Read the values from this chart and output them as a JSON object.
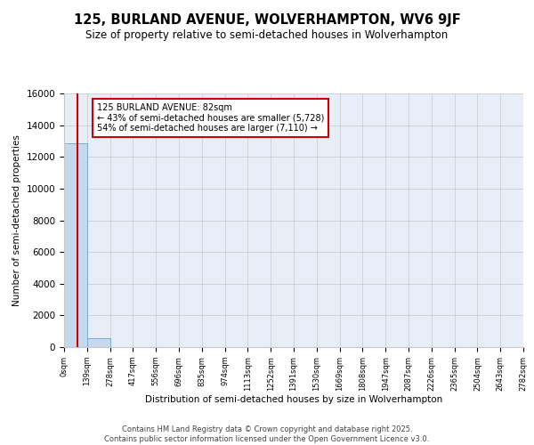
{
  "title": "125, BURLAND AVENUE, WOLVERHAMPTON, WV6 9JF",
  "subtitle": "Size of property relative to semi-detached houses in Wolverhampton",
  "xlabel": "Distribution of semi-detached houses by size in Wolverhampton",
  "ylabel": "Number of semi-detached properties",
  "property_size": 82,
  "property_label": "125 BURLAND AVENUE: 82sqm",
  "pct_smaller": 43,
  "pct_smaller_count": 5728,
  "pct_larger": 54,
  "pct_larger_count": 7110,
  "bar_color": "#c5d8ee",
  "bar_edge_color": "#7aadd4",
  "red_line_color": "#cc0000",
  "annotation_box_color": "#cc0000",
  "grid_color": "#c8c8c8",
  "bg_color": "#e8eef8",
  "bin_edges": [
    0,
    139,
    278,
    417,
    556,
    696,
    835,
    974,
    1113,
    1252,
    1391,
    1530,
    1669,
    1808,
    1947,
    2087,
    2226,
    2365,
    2504,
    2643,
    2782
  ],
  "bin_labels": [
    "0sqm",
    "139sqm",
    "278sqm",
    "417sqm",
    "556sqm",
    "696sqm",
    "835sqm",
    "974sqm",
    "1113sqm",
    "1252sqm",
    "1391sqm",
    "1530sqm",
    "1669sqm",
    "1808sqm",
    "1947sqm",
    "2087sqm",
    "2226sqm",
    "2365sqm",
    "2504sqm",
    "2643sqm",
    "2782sqm"
  ],
  "counts": [
    12838,
    563,
    0,
    0,
    0,
    0,
    0,
    0,
    0,
    0,
    0,
    0,
    0,
    0,
    0,
    0,
    0,
    0,
    0,
    0
  ],
  "ylim": [
    0,
    16000
  ],
  "yticks": [
    0,
    2000,
    4000,
    6000,
    8000,
    10000,
    12000,
    14000,
    16000
  ],
  "footer_line1": "Contains HM Land Registry data © Crown copyright and database right 2025.",
  "footer_line2": "Contains public sector information licensed under the Open Government Licence v3.0."
}
